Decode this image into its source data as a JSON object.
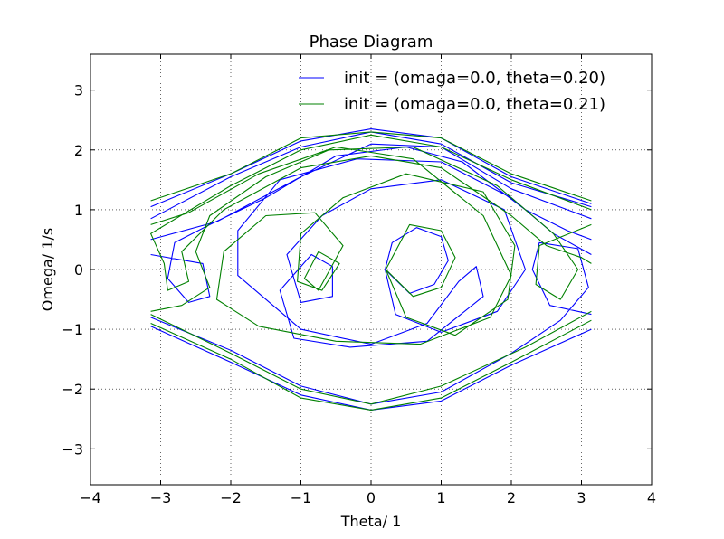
{
  "chart_data": {
    "type": "line",
    "title": "Phase Diagram",
    "xlabel": "Theta/ 1",
    "ylabel": "Omega/ 1/s",
    "xlim": [
      -4,
      4
    ],
    "ylim": [
      -3.6,
      3.6
    ],
    "xticks": [
      -4,
      -3,
      -2,
      -1,
      0,
      1,
      2,
      3,
      4
    ],
    "xtick_labels": [
      "−4",
      "−3",
      "−2",
      "−1",
      "0",
      "1",
      "2",
      "3",
      "4"
    ],
    "yticks": [
      -3,
      -2,
      -1,
      0,
      1,
      2,
      3
    ],
    "ytick_labels": [
      "−3",
      "−2",
      "−1",
      "0",
      "1",
      "2",
      "3"
    ],
    "grid": true,
    "legend_position": "top-right",
    "series": [
      {
        "name": "init = (omaga=0.0, theta=0.20)",
        "color": "#0000ff",
        "points": [
          [
            0.2,
            0.0
          ],
          [
            0.55,
            -0.4
          ],
          [
            0.9,
            -0.25
          ],
          [
            1.1,
            0.15
          ],
          [
            1.0,
            0.55
          ],
          [
            0.65,
            0.7
          ],
          [
            0.3,
            0.45
          ],
          [
            0.2,
            0.0
          ],
          [
            0.35,
            -0.75
          ],
          [
            1.0,
            -1.05
          ],
          [
            1.8,
            -0.7
          ],
          [
            2.2,
            0.0
          ],
          [
            1.9,
            1.0
          ],
          [
            1.0,
            1.5
          ],
          [
            0.0,
            1.35
          ],
          [
            -0.7,
            0.9
          ],
          [
            -1.2,
            0.25
          ],
          [
            -1.0,
            -0.55
          ],
          [
            -0.55,
            -0.45
          ],
          [
            -0.55,
            0.05
          ],
          [
            -0.85,
            0.25
          ],
          [
            -1.3,
            -0.35
          ],
          [
            -1.1,
            -1.15
          ],
          [
            -0.3,
            -1.3
          ],
          [
            0.8,
            -1.2
          ],
          [
            1.6,
            -0.45
          ],
          [
            1.5,
            0.05
          ],
          [
            1.25,
            -0.2
          ],
          [
            0.8,
            -0.9
          ],
          [
            0.0,
            -1.25
          ],
          [
            -1.0,
            -1.0
          ],
          [
            -1.9,
            -0.1
          ],
          [
            -1.9,
            0.65
          ],
          [
            -1.3,
            1.5
          ],
          [
            -0.2,
            1.85
          ],
          [
            1.0,
            1.8
          ],
          [
            2.0,
            1.2
          ],
          [
            2.6,
            0.6
          ],
          [
            3.14,
            0.25
          ],
          [
            -3.14,
            0.25
          ],
          [
            -2.4,
            0.1
          ],
          [
            -2.3,
            -0.45
          ],
          [
            -2.6,
            -0.55
          ],
          [
            -2.9,
            -0.15
          ],
          [
            -2.8,
            0.45
          ],
          [
            -2.3,
            0.75
          ],
          [
            -1.5,
            1.2
          ],
          [
            -0.5,
            1.9
          ],
          [
            0.5,
            2.05
          ],
          [
            1.3,
            1.8
          ],
          [
            2.2,
            1.0
          ],
          [
            2.8,
            0.65
          ],
          [
            3.14,
            0.5
          ],
          [
            -3.14,
            0.5
          ],
          [
            -2.2,
            0.8
          ],
          [
            -1.0,
            1.55
          ],
          [
            0.0,
            2.1
          ],
          [
            1.0,
            2.05
          ],
          [
            2.0,
            1.35
          ],
          [
            3.14,
            0.85
          ],
          [
            -3.14,
            0.85
          ],
          [
            -2.0,
            1.55
          ],
          [
            -1.0,
            2.05
          ],
          [
            0.0,
            2.3
          ],
          [
            1.0,
            2.1
          ],
          [
            2.0,
            1.45
          ],
          [
            3.14,
            1.05
          ],
          [
            -3.14,
            1.05
          ],
          [
            -2.0,
            1.6
          ],
          [
            -1.0,
            2.15
          ],
          [
            0.0,
            2.35
          ],
          [
            1.0,
            2.2
          ],
          [
            2.0,
            1.55
          ],
          [
            3.14,
            1.1
          ],
          [
            -3.14,
            -0.95
          ],
          [
            -2.0,
            -1.55
          ],
          [
            -1.0,
            -2.1
          ],
          [
            0.0,
            -2.35
          ],
          [
            1.0,
            -2.2
          ],
          [
            2.0,
            -1.6
          ],
          [
            3.14,
            -1.0
          ],
          [
            -3.14,
            -0.8
          ],
          [
            -2.0,
            -1.35
          ],
          [
            -1.0,
            -1.95
          ],
          [
            0.0,
            -2.25
          ],
          [
            1.0,
            -2.05
          ],
          [
            2.0,
            -1.4
          ],
          [
            2.7,
            -0.85
          ],
          [
            3.1,
            -0.3
          ],
          [
            2.95,
            0.35
          ],
          [
            2.4,
            0.45
          ],
          [
            2.3,
            0.0
          ],
          [
            2.55,
            -0.6
          ],
          [
            3.14,
            -0.75
          ]
        ]
      },
      {
        "name": "init = (omaga=0.0, theta=0.21)",
        "color": "#008000",
        "points": [
          [
            0.21,
            0.0
          ],
          [
            0.6,
            -0.45
          ],
          [
            1.0,
            -0.3
          ],
          [
            1.2,
            0.2
          ],
          [
            1.0,
            0.65
          ],
          [
            0.55,
            0.75
          ],
          [
            0.21,
            0.0
          ],
          [
            0.5,
            -0.8
          ],
          [
            1.2,
            -1.1
          ],
          [
            1.95,
            -0.5
          ],
          [
            2.05,
            0.4
          ],
          [
            1.6,
            1.3
          ],
          [
            0.5,
            1.6
          ],
          [
            -0.4,
            1.2
          ],
          [
            -1.0,
            0.6
          ],
          [
            -1.05,
            -0.2
          ],
          [
            -0.7,
            -0.35
          ],
          [
            -0.45,
            0.1
          ],
          [
            -0.75,
            0.3
          ],
          [
            -0.95,
            -0.15
          ],
          [
            -0.75,
            -0.35
          ],
          [
            -0.4,
            0.4
          ],
          [
            -0.8,
            0.95
          ],
          [
            -1.5,
            0.9
          ],
          [
            -2.1,
            0.3
          ],
          [
            -2.2,
            -0.5
          ],
          [
            -1.6,
            -0.95
          ],
          [
            -0.5,
            -1.2
          ],
          [
            0.7,
            -1.25
          ],
          [
            1.7,
            -0.8
          ],
          [
            2.0,
            -0.1
          ],
          [
            1.6,
            0.9
          ],
          [
            0.6,
            1.85
          ],
          [
            -0.5,
            2.05
          ],
          [
            -1.6,
            1.6
          ],
          [
            -2.6,
            0.95
          ],
          [
            -3.14,
            0.75
          ],
          [
            3.14,
            0.75
          ],
          [
            2.4,
            0.4
          ],
          [
            2.35,
            -0.25
          ],
          [
            2.7,
            -0.5
          ],
          [
            2.95,
            0.0
          ],
          [
            2.6,
            0.6
          ],
          [
            1.8,
            1.4
          ],
          [
            0.6,
            2.05
          ],
          [
            -0.6,
            2.0
          ],
          [
            -1.5,
            1.55
          ],
          [
            -2.3,
            0.9
          ],
          [
            -2.5,
            0.3
          ],
          [
            -2.3,
            -0.3
          ],
          [
            -2.7,
            -0.6
          ],
          [
            -3.14,
            -0.7
          ],
          [
            3.14,
            -0.7
          ],
          [
            2.2,
            -1.3
          ],
          [
            1.0,
            -1.95
          ],
          [
            0.0,
            -2.25
          ],
          [
            -1.0,
            -2.0
          ],
          [
            -2.0,
            -1.4
          ],
          [
            -3.14,
            -0.75
          ],
          [
            3.14,
            -0.85
          ],
          [
            2.0,
            -1.55
          ],
          [
            1.0,
            -2.15
          ],
          [
            0.0,
            -2.35
          ],
          [
            -1.0,
            -2.15
          ],
          [
            -2.0,
            -1.5
          ],
          [
            -3.14,
            -0.9
          ],
          [
            3.14,
            1.15
          ],
          [
            2.0,
            1.6
          ],
          [
            1.0,
            2.2
          ],
          [
            0.0,
            2.3
          ],
          [
            -1.0,
            2.2
          ],
          [
            -2.0,
            1.6
          ],
          [
            -3.14,
            1.15
          ],
          [
            3.14,
            1.0
          ],
          [
            2.0,
            1.5
          ],
          [
            1.0,
            2.05
          ],
          [
            0.0,
            2.25
          ],
          [
            -1.0,
            2.0
          ],
          [
            -2.0,
            1.4
          ],
          [
            -3.14,
            0.6
          ],
          [
            -2.95,
            0.1
          ],
          [
            -2.9,
            -0.35
          ],
          [
            -2.6,
            -0.2
          ],
          [
            -2.7,
            0.3
          ],
          [
            -2.1,
            1.0
          ],
          [
            -1.0,
            1.7
          ],
          [
            0.0,
            1.9
          ],
          [
            1.0,
            1.7
          ],
          [
            2.0,
            0.9
          ],
          [
            2.5,
            0.4
          ],
          [
            3.0,
            0.2
          ],
          [
            3.14,
            0.1
          ]
        ]
      }
    ]
  }
}
